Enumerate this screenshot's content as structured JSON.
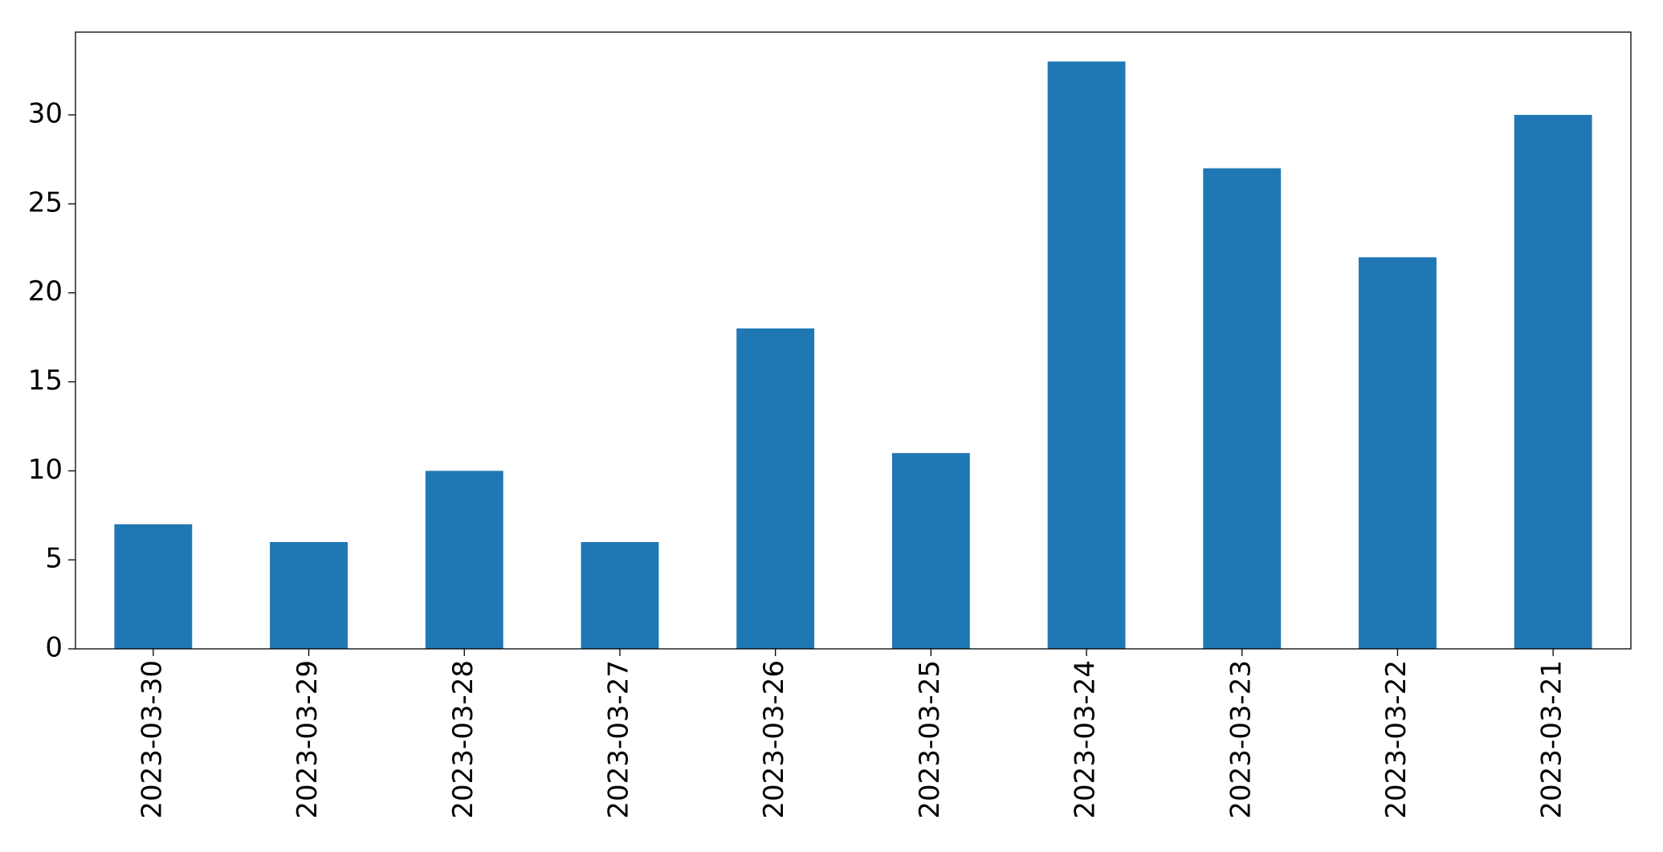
{
  "chart_data": {
    "type": "bar",
    "categories": [
      "2023-03-30",
      "2023-03-29",
      "2023-03-28",
      "2023-03-27",
      "2023-03-26",
      "2023-03-25",
      "2023-03-24",
      "2023-03-23",
      "2023-03-22",
      "2023-03-21"
    ],
    "values": [
      7,
      6,
      10,
      6,
      18,
      11,
      33,
      27,
      22,
      30
    ],
    "color": "#1f77b4",
    "ylim": [
      0,
      34.65
    ],
    "yticks": [
      0,
      5,
      10,
      15,
      20,
      25,
      30
    ],
    "grid": false
  }
}
